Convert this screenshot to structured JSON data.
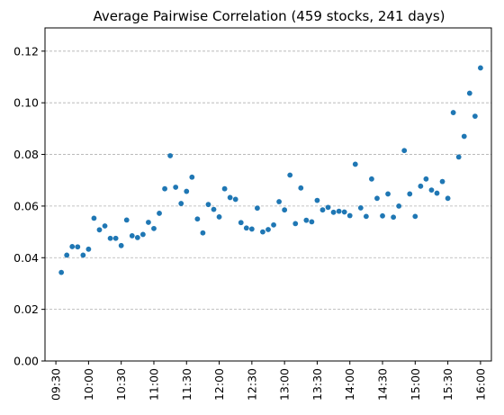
{
  "chart_data": {
    "type": "scatter",
    "title": "Average Pairwise Correlation (459 stocks, 241 days)",
    "xlabel": "",
    "ylabel": "",
    "x_tick_labels": [
      "09:30",
      "10:00",
      "10:30",
      "11:00",
      "11:30",
      "12:00",
      "12:30",
      "13:00",
      "13:30",
      "14:00",
      "14:30",
      "15:00",
      "15:30",
      "16:00"
    ],
    "y_ticks": [
      0.0,
      0.02,
      0.04,
      0.06,
      0.08,
      0.1,
      0.12
    ],
    "y_tick_labels": [
      "0.00",
      "0.02",
      "0.04",
      "0.06",
      "0.08",
      "0.10",
      "0.12"
    ],
    "ylim": [
      0,
      0.129
    ],
    "xlim": [
      "09:20",
      "16:10"
    ],
    "grid": "y-dashed",
    "marker_color": "#1f77b4",
    "series": [
      {
        "x": [
          "09:35",
          "09:40",
          "09:45",
          "09:50",
          "09:55",
          "10:00",
          "10:05",
          "10:10",
          "10:15",
          "10:20",
          "10:25",
          "10:30",
          "10:35",
          "10:40",
          "10:45",
          "10:50",
          "10:55",
          "11:00",
          "11:05",
          "11:10",
          "11:15",
          "11:20",
          "11:25",
          "11:30",
          "11:35",
          "11:40",
          "11:45",
          "11:50",
          "11:55",
          "12:00",
          "12:05",
          "12:10",
          "12:15",
          "12:20",
          "12:25",
          "12:30",
          "12:35",
          "12:40",
          "12:45",
          "12:50",
          "12:55",
          "13:00",
          "13:05",
          "13:10",
          "13:15",
          "13:20",
          "13:25",
          "13:30",
          "13:35",
          "13:40",
          "13:45",
          "13:50",
          "13:55",
          "14:00",
          "14:05",
          "14:10",
          "14:15",
          "14:20",
          "14:25",
          "14:30",
          "14:35",
          "14:40",
          "14:45",
          "14:50",
          "14:55",
          "15:00",
          "15:05",
          "15:10",
          "15:15",
          "15:20",
          "15:25",
          "15:30",
          "15:35",
          "15:40",
          "15:45",
          "15:50",
          "15:55",
          "16:00"
        ],
        "y": [
          0.0343,
          0.041,
          0.0443,
          0.0442,
          0.041,
          0.0433,
          0.0553,
          0.0508,
          0.0523,
          0.0475,
          0.0475,
          0.0447,
          0.0546,
          0.0485,
          0.0478,
          0.049,
          0.0537,
          0.0513,
          0.0572,
          0.0667,
          0.0795,
          0.0673,
          0.061,
          0.0657,
          0.0712,
          0.055,
          0.0496,
          0.0606,
          0.0587,
          0.0558,
          0.0667,
          0.0633,
          0.0626,
          0.0536,
          0.0515,
          0.0511,
          0.0592,
          0.05,
          0.0509,
          0.0527,
          0.0617,
          0.0585,
          0.072,
          0.0532,
          0.067,
          0.0545,
          0.0539,
          0.0622,
          0.0585,
          0.0595,
          0.0576,
          0.058,
          0.0577,
          0.0563,
          0.0762,
          0.0593,
          0.056,
          0.0705,
          0.063,
          0.0562,
          0.0647,
          0.0557,
          0.06,
          0.0815,
          0.0647,
          0.056,
          0.0677,
          0.0705,
          0.0662,
          0.065,
          0.0695,
          0.063,
          0.0962,
          0.079,
          0.087,
          0.1037,
          0.0948,
          0.1135
        ]
      }
    ]
  }
}
